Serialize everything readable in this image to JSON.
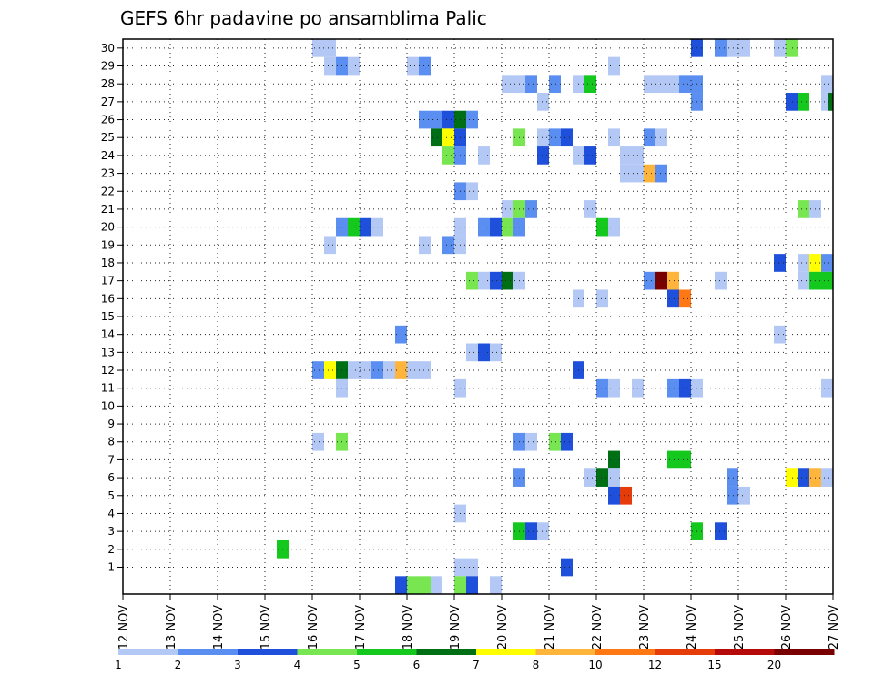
{
  "chart_data": {
    "type": "heatmap",
    "title": "GEFS 6hr padavine po ansamblima Palic",
    "x_ticks": [
      "12 NOV",
      "13 NOV",
      "14 NOV",
      "15 NOV",
      "16 NOV",
      "17 NOV",
      "18 NOV",
      "19 NOV",
      "20 NOV",
      "21 NOV",
      "22 NOV",
      "23 NOV",
      "24 NOV",
      "25 NOV",
      "26 NOV",
      "27 NOV"
    ],
    "y_ticks": [
      "1",
      "2",
      "3",
      "4",
      "5",
      "6",
      "7",
      "8",
      "9",
      "10",
      "11",
      "12",
      "13",
      "14",
      "15",
      "16",
      "17",
      "18",
      "19",
      "20",
      "21",
      "22",
      "23",
      "24",
      "25",
      "26",
      "27",
      "28",
      "29",
      "30"
    ],
    "member_range": [
      0,
      30
    ],
    "steps_per_day": 4,
    "legend": {
      "placement": "bottom",
      "labels": [
        "1",
        "2",
        "3",
        "4",
        "5",
        "6",
        "7",
        "8",
        "10",
        "12",
        "15",
        "20"
      ],
      "colors": [
        "#b4c8f5",
        "#5a8ef0",
        "#1e50dc",
        "#78e650",
        "#14c81e",
        "#006e14",
        "#ffff00",
        "#ffb43c",
        "#ff7814",
        "#e63c0a",
        "#b40a0a",
        "#780000"
      ]
    },
    "grid": true,
    "cells": [
      [
        30,
        16,
        0
      ],
      [
        30,
        16.25,
        0
      ],
      [
        30,
        24,
        2
      ],
      [
        30,
        24.5,
        1
      ],
      [
        30,
        24.75,
        0
      ],
      [
        30,
        25,
        0
      ],
      [
        30,
        25.75,
        0
      ],
      [
        30,
        26,
        3
      ],
      [
        29,
        16.25,
        0
      ],
      [
        29,
        16.5,
        1
      ],
      [
        29,
        16.75,
        0
      ],
      [
        29,
        18,
        0
      ],
      [
        29,
        18.25,
        1
      ],
      [
        29,
        22.25,
        0
      ],
      [
        28,
        20,
        0
      ],
      [
        28,
        20.25,
        0
      ],
      [
        28,
        20.5,
        1
      ],
      [
        28,
        21,
        1
      ],
      [
        28,
        21.5,
        0
      ],
      [
        28,
        21.75,
        4
      ],
      [
        28,
        23,
        0
      ],
      [
        28,
        23.25,
        0
      ],
      [
        28,
        23.5,
        0
      ],
      [
        28,
        23.75,
        1
      ],
      [
        28,
        24,
        1
      ],
      [
        28,
        26.75,
        0
      ],
      [
        27,
        20.75,
        0
      ],
      [
        27,
        24,
        1
      ],
      [
        27,
        26,
        2
      ],
      [
        27,
        26.25,
        4
      ],
      [
        27,
        26.75,
        0
      ],
      [
        27,
        26.9,
        5
      ],
      [
        26,
        18.25,
        1
      ],
      [
        26,
        18.5,
        1
      ],
      [
        26,
        18.75,
        2
      ],
      [
        26,
        19,
        5
      ],
      [
        26,
        19.25,
        1
      ],
      [
        25,
        18.5,
        5
      ],
      [
        25,
        18.75,
        6
      ],
      [
        25,
        19,
        2
      ],
      [
        25,
        20.25,
        3
      ],
      [
        25,
        20.75,
        0
      ],
      [
        25,
        21,
        1
      ],
      [
        25,
        21.25,
        2
      ],
      [
        25,
        22.25,
        0
      ],
      [
        25,
        23,
        1
      ],
      [
        25,
        23.25,
        0
      ],
      [
        24,
        18.75,
        3
      ],
      [
        24,
        19,
        1
      ],
      [
        24,
        19.5,
        0
      ],
      [
        24,
        20.75,
        2
      ],
      [
        24,
        21.5,
        0
      ],
      [
        24,
        21.75,
        2
      ],
      [
        24,
        22.5,
        0
      ],
      [
        24,
        22.75,
        0
      ],
      [
        23,
        22.5,
        0
      ],
      [
        23,
        22.75,
        0
      ],
      [
        23,
        23,
        7
      ],
      [
        23,
        23.25,
        1
      ],
      [
        22,
        19,
        1
      ],
      [
        22,
        19.25,
        0
      ],
      [
        21,
        20,
        0
      ],
      [
        21,
        20.25,
        3
      ],
      [
        21,
        20.5,
        1
      ],
      [
        21,
        21.75,
        0
      ],
      [
        21,
        26.25,
        3
      ],
      [
        21,
        26.5,
        0
      ],
      [
        20,
        16.5,
        1
      ],
      [
        20,
        16.75,
        4
      ],
      [
        20,
        17,
        2
      ],
      [
        20,
        17.25,
        0
      ],
      [
        20,
        19,
        0
      ],
      [
        20,
        19.5,
        1
      ],
      [
        20,
        19.75,
        2
      ],
      [
        20,
        20,
        3
      ],
      [
        20,
        20.25,
        1
      ],
      [
        20,
        22,
        4
      ],
      [
        20,
        22.25,
        0
      ],
      [
        19,
        16.25,
        0
      ],
      [
        19,
        18.25,
        0
      ],
      [
        19,
        18.75,
        1
      ],
      [
        19,
        19,
        0
      ],
      [
        18,
        25.75,
        2
      ],
      [
        18,
        26.25,
        0
      ],
      [
        18,
        26.5,
        6
      ],
      [
        18,
        26.75,
        1
      ],
      [
        17,
        19.25,
        3
      ],
      [
        17,
        19.5,
        0
      ],
      [
        17,
        19.75,
        2
      ],
      [
        17,
        20,
        5
      ],
      [
        17,
        20.25,
        0
      ],
      [
        17,
        23,
        1
      ],
      [
        17,
        23.25,
        11
      ],
      [
        17,
        23.5,
        7
      ],
      [
        17,
        24.5,
        0
      ],
      [
        17,
        26.25,
        0
      ],
      [
        17,
        26.5,
        4
      ],
      [
        17,
        26.75,
        4
      ],
      [
        16,
        23.5,
        2
      ],
      [
        16,
        23.75,
        8
      ],
      [
        16,
        21.5,
        0
      ],
      [
        16,
        22,
        0
      ],
      [
        14,
        17.75,
        1
      ],
      [
        14,
        25.75,
        0
      ],
      [
        13,
        19.25,
        0
      ],
      [
        13,
        19.5,
        2
      ],
      [
        13,
        19.75,
        0
      ],
      [
        12,
        16,
        1
      ],
      [
        12,
        16.25,
        6
      ],
      [
        12,
        16.5,
        5
      ],
      [
        12,
        16.75,
        0
      ],
      [
        12,
        17,
        0
      ],
      [
        12,
        17.25,
        1
      ],
      [
        12,
        17.5,
        0
      ],
      [
        12,
        17.75,
        7
      ],
      [
        12,
        18,
        0
      ],
      [
        12,
        18.25,
        0
      ],
      [
        12,
        21.5,
        2
      ],
      [
        11,
        16.5,
        0
      ],
      [
        11,
        19,
        0
      ],
      [
        11,
        22,
        1
      ],
      [
        11,
        22.25,
        0
      ],
      [
        11,
        22.75,
        0
      ],
      [
        11,
        23.5,
        1
      ],
      [
        11,
        23.75,
        2
      ],
      [
        11,
        24,
        0
      ],
      [
        11,
        26.75,
        0
      ],
      [
        8,
        16,
        0
      ],
      [
        8,
        16.5,
        3
      ],
      [
        8,
        20.25,
        1
      ],
      [
        8,
        20.5,
        0
      ],
      [
        8,
        21,
        3
      ],
      [
        8,
        21.25,
        2
      ],
      [
        7,
        22.25,
        5
      ],
      [
        7,
        23.5,
        4
      ],
      [
        7,
        23.75,
        4
      ],
      [
        6,
        20.25,
        1
      ],
      [
        6,
        21.75,
        0
      ],
      [
        6,
        22,
        5
      ],
      [
        6,
        22.25,
        0
      ],
      [
        6,
        24.75,
        1
      ],
      [
        6,
        26,
        6
      ],
      [
        6,
        26.25,
        2
      ],
      [
        6,
        26.5,
        7
      ],
      [
        6,
        26.75,
        0
      ],
      [
        5,
        22.25,
        2
      ],
      [
        5,
        22.5,
        9
      ],
      [
        5,
        24.75,
        1
      ],
      [
        5,
        25,
        0
      ],
      [
        4,
        19,
        0
      ],
      [
        3,
        20.25,
        4
      ],
      [
        3,
        20.5,
        2
      ],
      [
        3,
        20.75,
        0
      ],
      [
        3,
        24,
        4
      ],
      [
        3,
        24.5,
        2
      ],
      [
        2,
        15.25,
        4
      ],
      [
        1,
        19,
        0
      ],
      [
        1,
        19.25,
        0
      ],
      [
        1,
        21.25,
        2
      ],
      [
        0,
        17.75,
        2
      ],
      [
        0,
        18,
        3
      ],
      [
        0,
        18.25,
        3
      ],
      [
        0,
        18.5,
        0
      ],
      [
        0,
        19,
        3
      ],
      [
        0,
        19.25,
        2
      ],
      [
        0,
        19.75,
        0
      ]
    ]
  }
}
